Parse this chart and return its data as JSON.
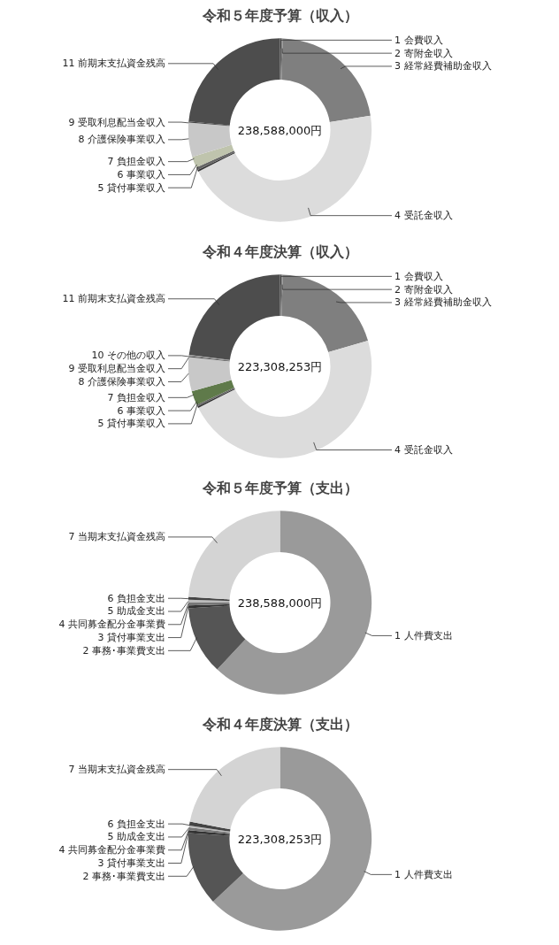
{
  "chart_data": [
    {
      "type": "donut",
      "title": "令和５年度予算（収入）",
      "subtitle": "238,588,000円",
      "categories": [
        "1 会費収入",
        "2 寄附金収入",
        "3 経常経費補助金収入",
        "4 受託金収入",
        "5 貸付事業収入",
        "6 事業収入",
        "7 負担金収入",
        "8 介護保険事業収入",
        "9 受取利息配当金収入",
        "11 前期末支払資金残高"
      ],
      "values": [
        0.3,
        0.2,
        22,
        45,
        0.3,
        0.5,
        2,
        6,
        0.2,
        23.5
      ],
      "colors": [
        "#555555",
        "#777777",
        "#7f7f7f",
        "#dcdcdc",
        "#333333",
        "#666666",
        "#bfc4ad",
        "#c8c8c8",
        "#444444",
        "#4d4d4d"
      ],
      "legend": false
    },
    {
      "type": "donut",
      "title": "令和４年度決算（収入）",
      "subtitle": "223,308,253円",
      "categories": [
        "1 会費収入",
        "2 寄附金収入",
        "3 経常経費補助金収入",
        "4 受託金収入",
        "5 貸付事業収入",
        "6 事業収入",
        "7 負担金収入",
        "8 介護保険事業収入",
        "9 受取利息配当金収入",
        "10 その他の収入",
        "11 前期末支払資金残高"
      ],
      "values": [
        0.3,
        0.2,
        20,
        47,
        0.3,
        0.3,
        2.5,
        6,
        0.2,
        0.2,
        23
      ],
      "colors": [
        "#555555",
        "#777777",
        "#7f7f7f",
        "#dcdcdc",
        "#333333",
        "#666666",
        "#5f7a4a",
        "#c8c8c8",
        "#444444",
        "#999999",
        "#4d4d4d"
      ],
      "legend": false
    },
    {
      "type": "donut",
      "title": "令和５年度予算（支出）",
      "subtitle": "238,588,000円",
      "categories": [
        "1 人件費支出",
        "2 事務･事業費支出",
        "3 貸付事業支出",
        "4 共同募金配分金事業費",
        "5 助成金支出",
        "6 負担金支出",
        "7 当期末支払資金残高"
      ],
      "values": [
        62,
        12,
        0.5,
        0.5,
        0.5,
        0.5,
        24
      ],
      "colors": [
        "#9a9a9a",
        "#555555",
        "#333333",
        "#777777",
        "#bbbbbb",
        "#444444",
        "#d4d4d4"
      ],
      "legend": false
    },
    {
      "type": "donut",
      "title": "令和４年度決算（支出）",
      "subtitle": "223,308,253円",
      "categories": [
        "1 人件費支出",
        "2 事務･事業費支出",
        "3 貸付事業支出",
        "4 共同募金配分金事業費",
        "5 助成金支出",
        "6 負担金支出",
        "7 当期末支払資金残高"
      ],
      "values": [
        63,
        13,
        0.5,
        0.5,
        0.3,
        0.7,
        22
      ],
      "colors": [
        "#9a9a9a",
        "#555555",
        "#333333",
        "#777777",
        "#bbbbbb",
        "#444444",
        "#d4d4d4"
      ],
      "legend": false
    }
  ]
}
